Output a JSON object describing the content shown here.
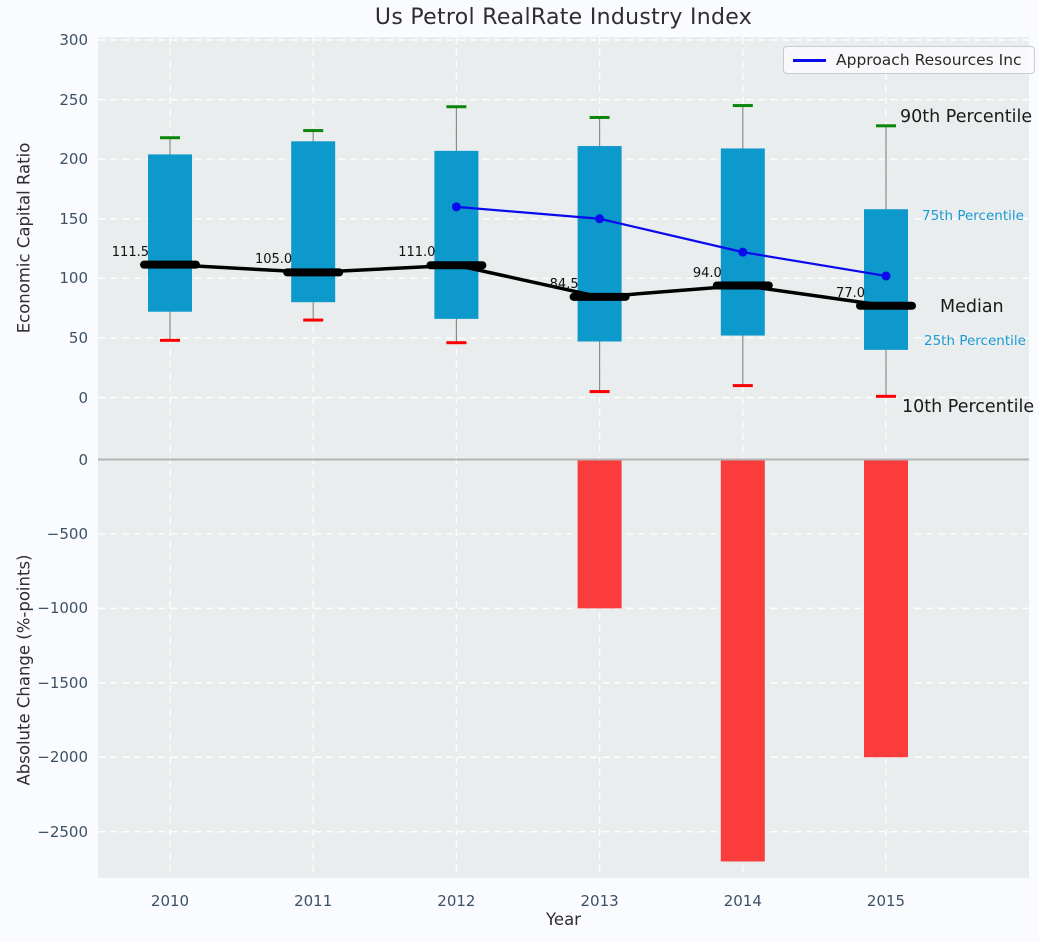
{
  "title": "Us Petrol RealRate Industry Index",
  "legend": {
    "label": "Approach Resources Inc"
  },
  "annotations": {
    "p90": "90th Percentile",
    "p75": "75th Percentile",
    "median": "Median",
    "p25": "25th Percentile",
    "p10": "10th Percentile"
  },
  "colors": {
    "fig_bg": "#fafbfe",
    "axes_bg": "#e9edee",
    "grid": "#ffffff",
    "box": "#0d99cb",
    "bar": "#fa3d3c",
    "cap_high": "#0a870a",
    "cap_low": "#fb0000",
    "company_line": "#0a0aee",
    "median": "#000000",
    "whisker": "#8a8a8a",
    "zero_line": "#b4b4b4",
    "tick_text": "#3d5166",
    "cyan_text": "#1b9ad2"
  },
  "chart_data": [
    {
      "type": "box-whisker+line",
      "title": "Us Petrol RealRate Industry Index",
      "ylabel": "Economic Capital Ratio",
      "ylim": [
        -52,
        300
      ],
      "yticks": [
        0,
        50,
        100,
        150,
        200,
        250,
        300
      ],
      "grid": true,
      "legend_position": "upper right",
      "categories": [
        "2010",
        "2011",
        "2012",
        "2013",
        "2014",
        "2015"
      ],
      "percentile_90": [
        218,
        224,
        244,
        235,
        245,
        228
      ],
      "percentile_75": [
        204,
        215,
        207,
        211,
        209,
        158
      ],
      "median": [
        111.5,
        105.0,
        111.0,
        84.5,
        94.0,
        77.0
      ],
      "median_labels": [
        "111.5",
        "105.0",
        "111.0",
        "84.5",
        "94.0",
        "77.0"
      ],
      "percentile_25": [
        72,
        80,
        66,
        47,
        52,
        40
      ],
      "percentile_10": [
        48,
        65,
        46,
        5,
        10,
        1
      ],
      "series": [
        {
          "name": "Approach Resources Inc",
          "x": [
            "2012",
            "2013",
            "2014",
            "2015"
          ],
          "values": [
            160,
            150,
            122,
            102
          ]
        }
      ]
    },
    {
      "type": "bar",
      "ylabel": "Absolute Change (%-points)",
      "xlabel": "Year",
      "ylim": [
        -2811,
        0
      ],
      "yticks": [
        0,
        -500,
        -1000,
        -1500,
        -2000,
        -2500
      ],
      "grid": true,
      "categories": [
        "2010",
        "2011",
        "2012",
        "2013",
        "2014",
        "2015"
      ],
      "values": [
        null,
        null,
        null,
        -1000,
        -2700,
        -2000
      ]
    }
  ]
}
